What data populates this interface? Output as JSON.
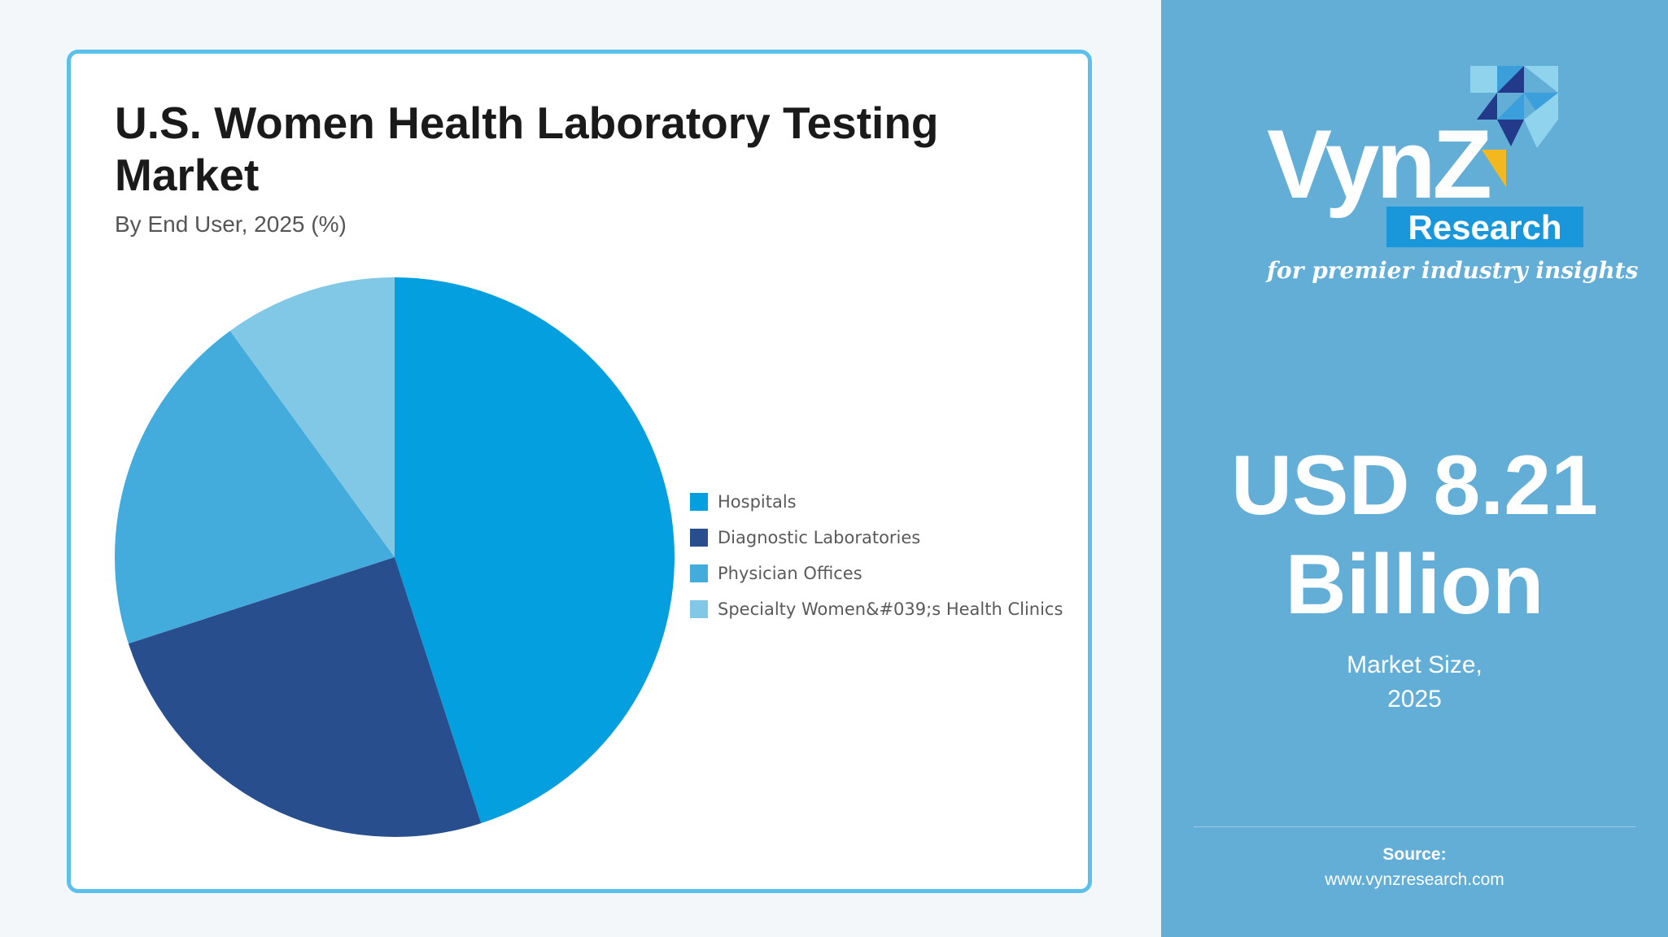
{
  "chart_data": {
    "type": "pie",
    "title": "U.S. Women Health Laboratory Testing Market",
    "subtitle": "By End User, 2025 (%)",
    "categories": [
      "Hospitals",
      "Diagnostic Laboratories",
      "Physician Offices",
      "Specialty Women&#039;s Health Clinics"
    ],
    "values": [
      45,
      25,
      20,
      10
    ],
    "colors": [
      "#049fdf",
      "#294e8e",
      "#44abdd",
      "#80c8e5"
    ],
    "legend_position": "right"
  },
  "side_panel": {
    "brand": {
      "logo_text": "VynZ",
      "sub_text": "Research",
      "tagline": "for premier industry insights",
      "colors": {
        "light": "#8fd3ec",
        "mid": "#3a9fdb",
        "dark": "#233a8b",
        "accent": "#f2b81e",
        "research_bg": "#1a97db"
      }
    },
    "market_value": "USD 8.21 Billion",
    "market_label_line1": "Market Size,",
    "market_label_line2": "2025",
    "source_heading": "Source:",
    "source_url": "www.vynzresearch.com"
  }
}
